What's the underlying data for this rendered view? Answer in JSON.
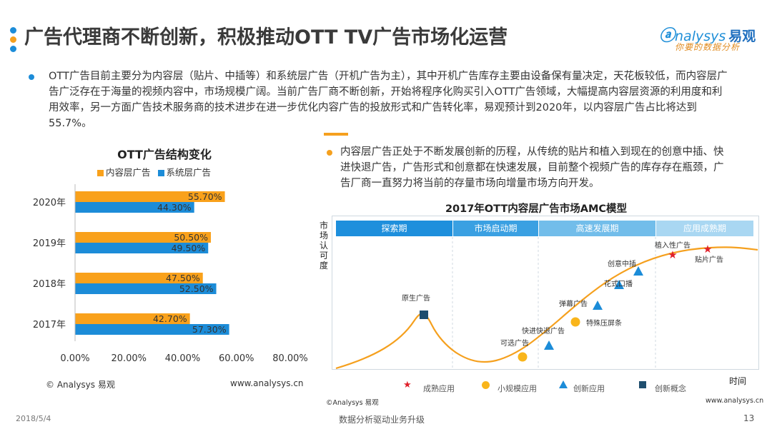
{
  "header": {
    "title": "广告代理商不断创新，积极推动OTT TV广告市场化运营",
    "logo_en": "nalysys",
    "logo_cn": "易观",
    "logo_tagline": "你要的数据分析"
  },
  "intro": {
    "text": "OTT广告目前主要分为内容层（贴片、中插等）和系统层广告（开机广告为主），其中开机广告库存主要由设备保有量决定，天花板较低，而内容层广告广泛存在于海量的视频内容中，市场规模广阔。当前广告厂商不断创新，开始将程序化购买引入OTT广告领域，大幅提高内容层资源的利用度和利用效率，另一方面广告技术服务商的技术进步在进一步优化内容广告的投放形式和广告转化率，易观预计到2020年，以内容层广告占比将达到55.7%。"
  },
  "right_text": {
    "text": "内容层广告正处于不断发展创新的历程，从传统的贴片和植入到现在的创意中插、快进快退广告，广告形式和创意都在快速发展，目前整个视频广告的库存存在瓶颈，广告厂商一直努力将当前的存量市场向增量市场方向开发。"
  },
  "chart_data": [
    {
      "type": "bar",
      "orientation": "horizontal",
      "title": "OTT广告结构变化",
      "categories": [
        "2020年",
        "2019年",
        "2018年",
        "2017年"
      ],
      "series": [
        {
          "name": "内容层广告",
          "values": [
            55.7,
            50.5,
            47.5,
            42.7
          ],
          "labels": [
            "55.70%",
            "50.50%",
            "47.50%",
            "42.70%"
          ],
          "color": "#f9a11b"
        },
        {
          "name": "系统层广告",
          "values": [
            44.3,
            49.5,
            52.5,
            57.3
          ],
          "labels": [
            "44.30%",
            "49.50%",
            "52.50%",
            "57.30%"
          ],
          "color": "#1c8cd8"
        }
      ],
      "xlim": [
        0,
        80
      ],
      "xticks": [
        "0.00%",
        "20.00%",
        "40.00%",
        "60.00%",
        "80.00%"
      ],
      "legend_position": "top",
      "grid": false
    }
  ],
  "left_footer": {
    "copyright": "© Analysys 易观",
    "url": "www.analysys.cn"
  },
  "amc": {
    "title": "2017年OTT内容层广告市场AMC模型",
    "y_label": "市场认可度",
    "x_label": "时间",
    "phases": [
      "探索期",
      "市场启动期",
      "高速发展期",
      "应用成熟期"
    ],
    "points": [
      {
        "label": "原生广告",
        "kind": "创新概念"
      },
      {
        "label": "可选广告",
        "kind": "小规模应用"
      },
      {
        "label": "快进快退广告",
        "kind": "创新应用"
      },
      {
        "label": "弹幕广告",
        "kind": "小规模应用"
      },
      {
        "label": "特殊压屏条",
        "kind": "创新应用"
      },
      {
        "label": "花式口播",
        "kind": "创新应用"
      },
      {
        "label": "创意中插",
        "kind": "创新应用"
      },
      {
        "label": "植入性广告",
        "kind": "成熟应用"
      },
      {
        "label": "贴片广告",
        "kind": "成熟应用"
      }
    ],
    "legend": [
      "成熟应用",
      "小规模应用",
      "创新应用",
      "创新概念"
    ],
    "copyright": "©Analysys 易观",
    "url": "www.analysys.cn",
    "colors": {
      "mature": "#e0202a",
      "small": "#f9b51b",
      "innovation": "#1c8cd8",
      "concept": "#1f4e6e",
      "curve": "#f5a01e"
    }
  },
  "page_footer": {
    "date": "2018/5/4",
    "slogan": "数据分析驱动业务升级",
    "page_number": "13"
  }
}
